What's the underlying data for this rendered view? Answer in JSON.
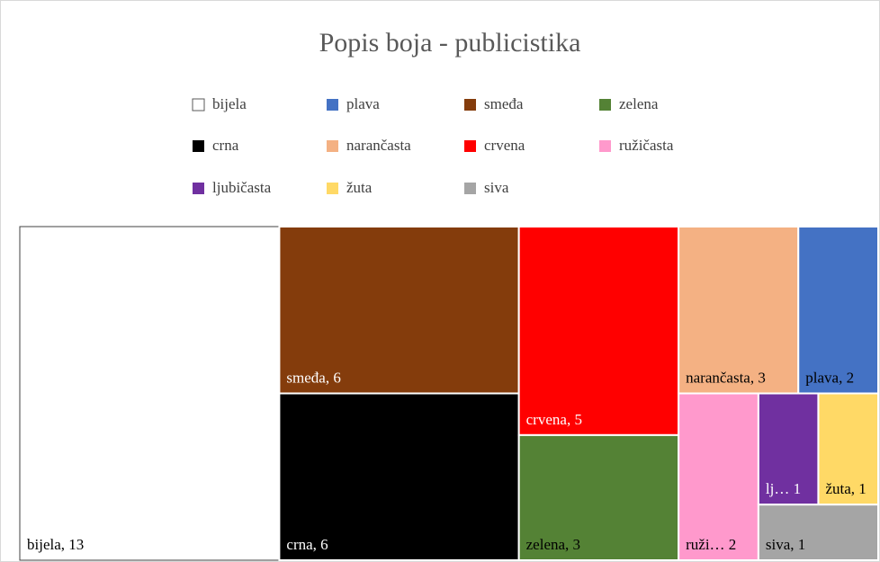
{
  "chart_data": {
    "type": "treemap",
    "title": "Popis boja - publicistika",
    "categories": [
      "bijela",
      "plava",
      "smeđa",
      "zelena",
      "crna",
      "narančasta",
      "crvena",
      "ružičasta",
      "ljubičasta",
      "žuta",
      "siva"
    ],
    "values": [
      13,
      2,
      6,
      3,
      6,
      3,
      5,
      2,
      1,
      1,
      1
    ],
    "value_labels": [
      "bijela, 13",
      "plava, 2",
      "smeđa, 6",
      "zelena, 3",
      "crna, 6",
      "narančasta, 3",
      "crvena, 5",
      "ruži… 2",
      "lj… 1",
      "žuta, 1",
      "siva, 1"
    ],
    "colors": [
      "#ffffff",
      "#4472c4",
      "#843c0c",
      "#548235",
      "#000000",
      "#f4b183",
      "#ff0000",
      "#ff99cc",
      "#7030a0",
      "#ffd966",
      "#a5a5a5"
    ],
    "legend": "top"
  }
}
